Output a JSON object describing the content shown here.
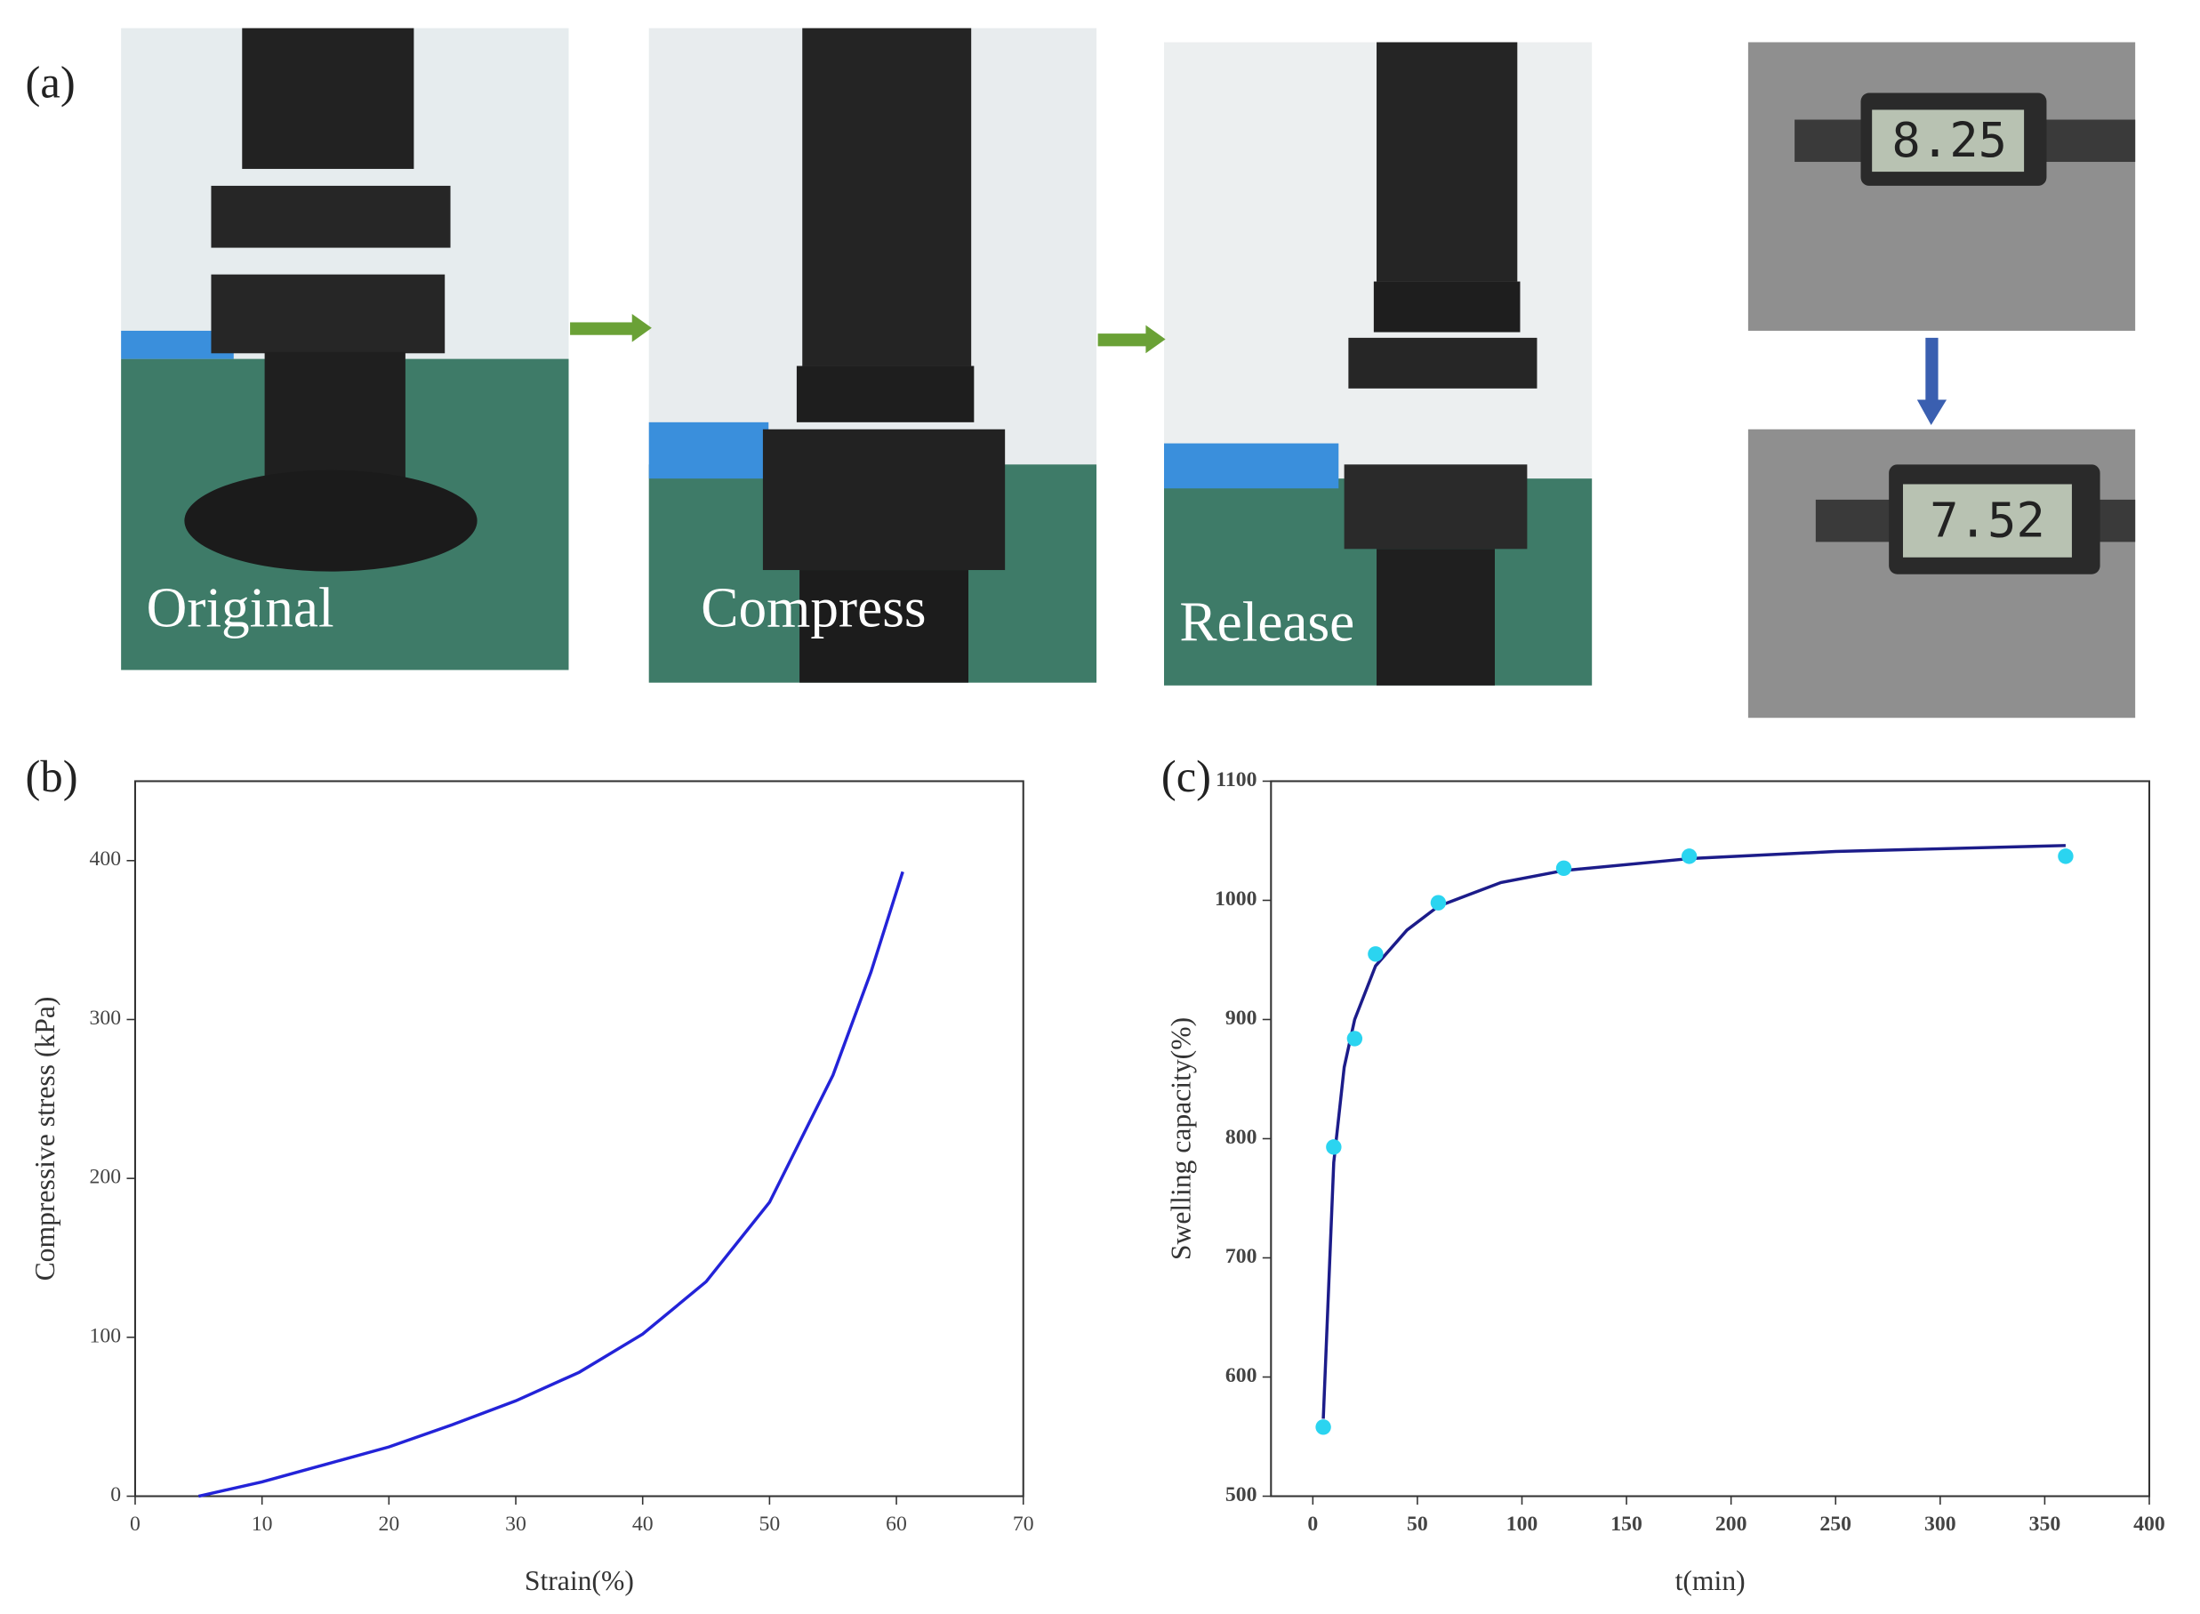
{
  "panel_a": {
    "label": "(a)",
    "captions": [
      "Original",
      "Compress",
      "Release"
    ],
    "readings": [
      "8.25",
      "7.52"
    ]
  },
  "chart_data": [
    {
      "type": "line",
      "panel_label": "(b)",
      "xlabel": "Strain(%)",
      "ylabel": "Compressive stress (kPa)",
      "xlim": [
        0,
        70
      ],
      "xticks": [
        0,
        10,
        20,
        30,
        40,
        50,
        60,
        70
      ],
      "ylim": [
        0,
        450
      ],
      "yticks": [
        0,
        100,
        200,
        300,
        400
      ],
      "series": [
        {
          "mode": "line",
          "color": "#2323d8",
          "x": [
            5,
            10,
            15,
            20,
            25,
            30,
            35,
            40,
            45,
            50,
            55,
            58,
            60.5
          ],
          "y": [
            0,
            9,
            20,
            31,
            45,
            60,
            78,
            102,
            135,
            185,
            265,
            330,
            393
          ]
        }
      ]
    },
    {
      "type": "scatter",
      "panel_label": "(c)",
      "xlabel": "t(min)",
      "ylabel": "Swelling capacity(%)",
      "xlim": [
        -20,
        400
      ],
      "xticks": [
        0,
        50,
        100,
        150,
        200,
        250,
        300,
        350,
        400
      ],
      "ylim": [
        500,
        1100
      ],
      "yticks": [
        500,
        600,
        700,
        800,
        900,
        1000,
        1100
      ],
      "series": [
        {
          "mode": "line",
          "color": "#1c1c8a",
          "x": [
            5,
            10,
            15,
            20,
            30,
            45,
            60,
            90,
            120,
            180,
            250,
            360
          ],
          "y": [
            565,
            780,
            860,
            900,
            945,
            975,
            995,
            1015,
            1025,
            1035,
            1041,
            1046
          ]
        },
        {
          "mode": "markers",
          "color": "#2bd4f0",
          "x": [
            5,
            10,
            20,
            30,
            60,
            120,
            180,
            360
          ],
          "y": [
            558,
            793,
            884,
            955,
            998,
            1027,
            1037,
            1037
          ]
        }
      ]
    }
  ]
}
